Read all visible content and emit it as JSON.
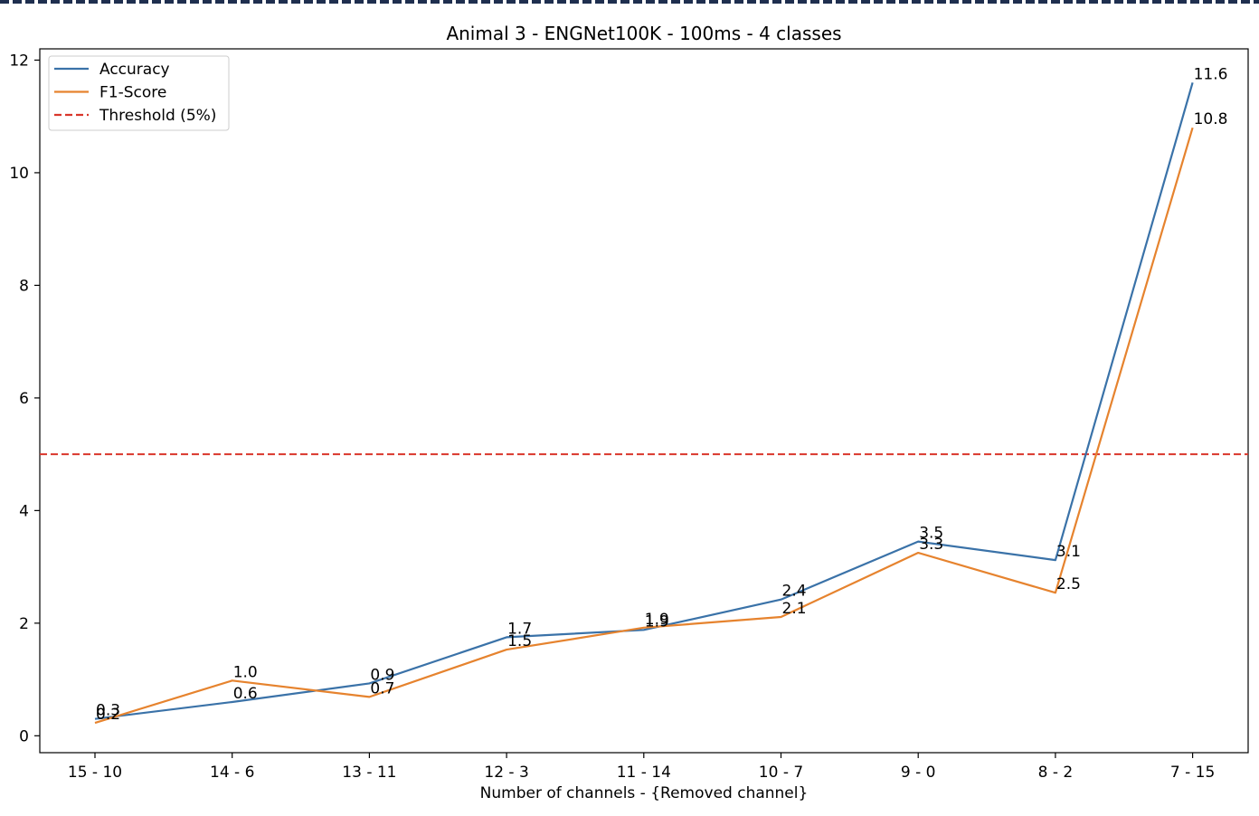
{
  "chart_data": {
    "type": "line",
    "title": "Animal 3 - ENGNet100K - 100ms - 4 classes",
    "xlabel": "Number of channels - {Removed channel}",
    "ylabel": "",
    "categories": [
      "15 - 10",
      "14 - 6",
      "13 - 11",
      "12 - 3",
      "11 - 14",
      "10 - 7",
      "9 - 0",
      "8 - 2",
      "7 - 15"
    ],
    "ylim": [
      -0.3,
      12.2
    ],
    "yticks": [
      0,
      2,
      4,
      6,
      8,
      10,
      12
    ],
    "grid": false,
    "legend_position": "top-left",
    "series": [
      {
        "name": "Accuracy",
        "color": "#3a72a8",
        "values": [
          0.3,
          0.6,
          0.93,
          1.75,
          1.88,
          2.42,
          3.45,
          3.12,
          11.6
        ],
        "labels": [
          "0.3",
          "0.6",
          "0.9",
          "1.7",
          "1.9",
          "2.4",
          "3.5",
          "3.1",
          "11.6"
        ]
      },
      {
        "name": "F1-Score",
        "color": "#e6832e",
        "values": [
          0.23,
          0.98,
          0.69,
          1.53,
          1.92,
          2.11,
          3.25,
          2.54,
          10.8
        ],
        "labels": [
          "0.2",
          "1.0",
          "0.7",
          "1.5",
          "1.9",
          "2.1",
          "3.3",
          "2.5",
          "10.8"
        ]
      }
    ],
    "threshold": {
      "name": "Threshold (5%)",
      "value": 5,
      "color": "#d9362b",
      "style": "dashed"
    }
  }
}
